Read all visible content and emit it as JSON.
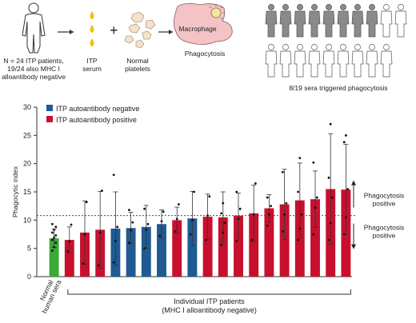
{
  "schematic": {
    "patients_lines": [
      "N = 24 ITP patients,",
      "19/24 also MHC I",
      "alloantibody negative"
    ],
    "serum_lines": [
      "ITP",
      "serum"
    ],
    "plus": "+",
    "platelets_lines": [
      "Normal",
      "platelets"
    ],
    "macrophage_label": "Macrophage",
    "phagocytosis_label": "Phagocytosis",
    "result_caption": "8/19 sera triggered phagocytosis",
    "result_triggered_count": 8,
    "result_total_count": 19
  },
  "chart_data": {
    "type": "bar",
    "ylabel": "Phagocytic index",
    "ylim": [
      0,
      30
    ],
    "yticks": [
      0,
      5,
      10,
      15,
      20,
      25,
      30
    ],
    "threshold": 10.8,
    "legend": [
      {
        "label": "ITP autoantibody negative",
        "color": "#1f5a92"
      },
      {
        "label": "ITP autoantibody positive",
        "color": "#c8102e"
      }
    ],
    "control_label_lines": [
      "Normal",
      "human sera"
    ],
    "group_label_lines": [
      "Individual ITP patients",
      "(MHC I alloantibody negative)"
    ],
    "right_annotations": {
      "above": [
        "Phagocytosis",
        "positive"
      ],
      "below": [
        "Phagocytosis",
        "positive"
      ]
    },
    "colors": {
      "control": "#3aa935",
      "negative": "#1f5a92",
      "positive": "#c8102e"
    },
    "series": [
      {
        "group": "control",
        "value": 6.8,
        "err": 1.6,
        "points": [
          4.6,
          5.2,
          6.0,
          6.5,
          6.9,
          7.3,
          7.8,
          8.3,
          8.8,
          9.3
        ]
      },
      {
        "group": "positive",
        "value": 6.5,
        "err": 2.3,
        "points": [
          4.5,
          6.2,
          9.2
        ]
      },
      {
        "group": "positive",
        "value": 7.8,
        "err": 5.6,
        "points": [
          2.3,
          7.5,
          13.2
        ]
      },
      {
        "group": "positive",
        "value": 8.3,
        "err": 6.8,
        "points": [
          2.0,
          7.8,
          15.2
        ]
      },
      {
        "group": "negative",
        "value": 8.5,
        "err": 6.5,
        "points": [
          2.5,
          6.3,
          8.8,
          18.0
        ]
      },
      {
        "group": "negative",
        "value": 8.6,
        "err": 2.8,
        "points": [
          6.0,
          8.2,
          9.6,
          11.8
        ]
      },
      {
        "group": "negative",
        "value": 8.8,
        "err": 3.8,
        "points": [
          5.0,
          8.3,
          9.3,
          12.0
        ]
      },
      {
        "group": "negative",
        "value": 9.3,
        "err": 2.5,
        "points": [
          7.2,
          9.8,
          11.5
        ]
      },
      {
        "group": "positive",
        "value": 10.0,
        "err": 2.3,
        "points": [
          8.0,
          10.2,
          12.8
        ]
      },
      {
        "group": "negative",
        "value": 10.3,
        "err": 4.8,
        "points": [
          7.5,
          10.0,
          15.0
        ]
      },
      {
        "group": "positive",
        "value": 10.6,
        "err": 4.0,
        "points": [
          6.5,
          10.8,
          14.2
        ]
      },
      {
        "group": "positive",
        "value": 10.5,
        "err": 4.5,
        "points": [
          5.6,
          7.8,
          9.5,
          11.2,
          13.0
        ]
      },
      {
        "group": "positive",
        "value": 10.8,
        "err": 4.0,
        "points": [
          6.3,
          10.2,
          12.0,
          15.0
        ]
      },
      {
        "group": "positive",
        "value": 11.2,
        "err": 5.0,
        "points": [
          6.5,
          11.0,
          16.5
        ]
      },
      {
        "group": "positive",
        "value": 12.1,
        "err": 2.4,
        "points": [
          9.0,
          11.0,
          12.5,
          14.0
        ]
      },
      {
        "group": "positive",
        "value": 12.8,
        "err": 6.2,
        "points": [
          8.0,
          11.0,
          13.0,
          18.5
        ]
      },
      {
        "group": "positive",
        "value": 13.5,
        "err": 6.6,
        "points": [
          6.5,
          8.5,
          11.0,
          15.0,
          21.0
        ]
      },
      {
        "group": "positive",
        "value": 13.7,
        "err": 5.0,
        "points": [
          7.5,
          12.2,
          14.0,
          20.2
        ]
      },
      {
        "group": "positive",
        "value": 15.5,
        "err": 9.8,
        "points": [
          6.5,
          9.5,
          14.0,
          17.5,
          27.0
        ]
      },
      {
        "group": "positive",
        "value": 15.4,
        "err": 8.0,
        "points": [
          7.5,
          10.5,
          15.5,
          23.8,
          25.0
        ]
      }
    ]
  }
}
